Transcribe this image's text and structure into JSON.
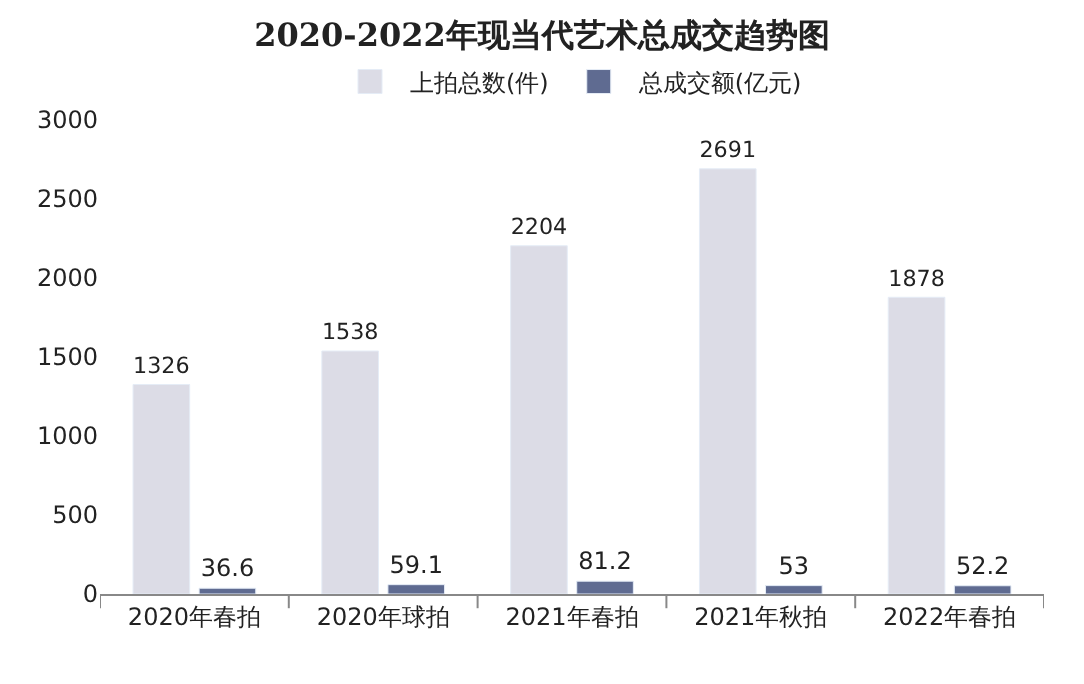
{
  "chart_data": {
    "type": "bar",
    "title": "2020-2022年现当代艺术总成交趋势图",
    "categories": [
      "2020年春拍",
      "2020年球拍",
      "2021年春拍",
      "2021年秋拍",
      "2022年春拍"
    ],
    "series": [
      {
        "name": "上拍总数(件)",
        "color": "#dcdce6",
        "values": [
          1326,
          1538,
          2204,
          2691,
          1878
        ]
      },
      {
        "name": "总成交额(亿元)",
        "color": "#5f6b91",
        "values": [
          36.6,
          59.1,
          81.2,
          53,
          52.2
        ]
      }
    ],
    "ylim": [
      0,
      3000
    ],
    "yticks": [
      0,
      500,
      1000,
      1500,
      2000,
      2500,
      3000
    ],
    "legend": "top",
    "data_labels": true
  }
}
